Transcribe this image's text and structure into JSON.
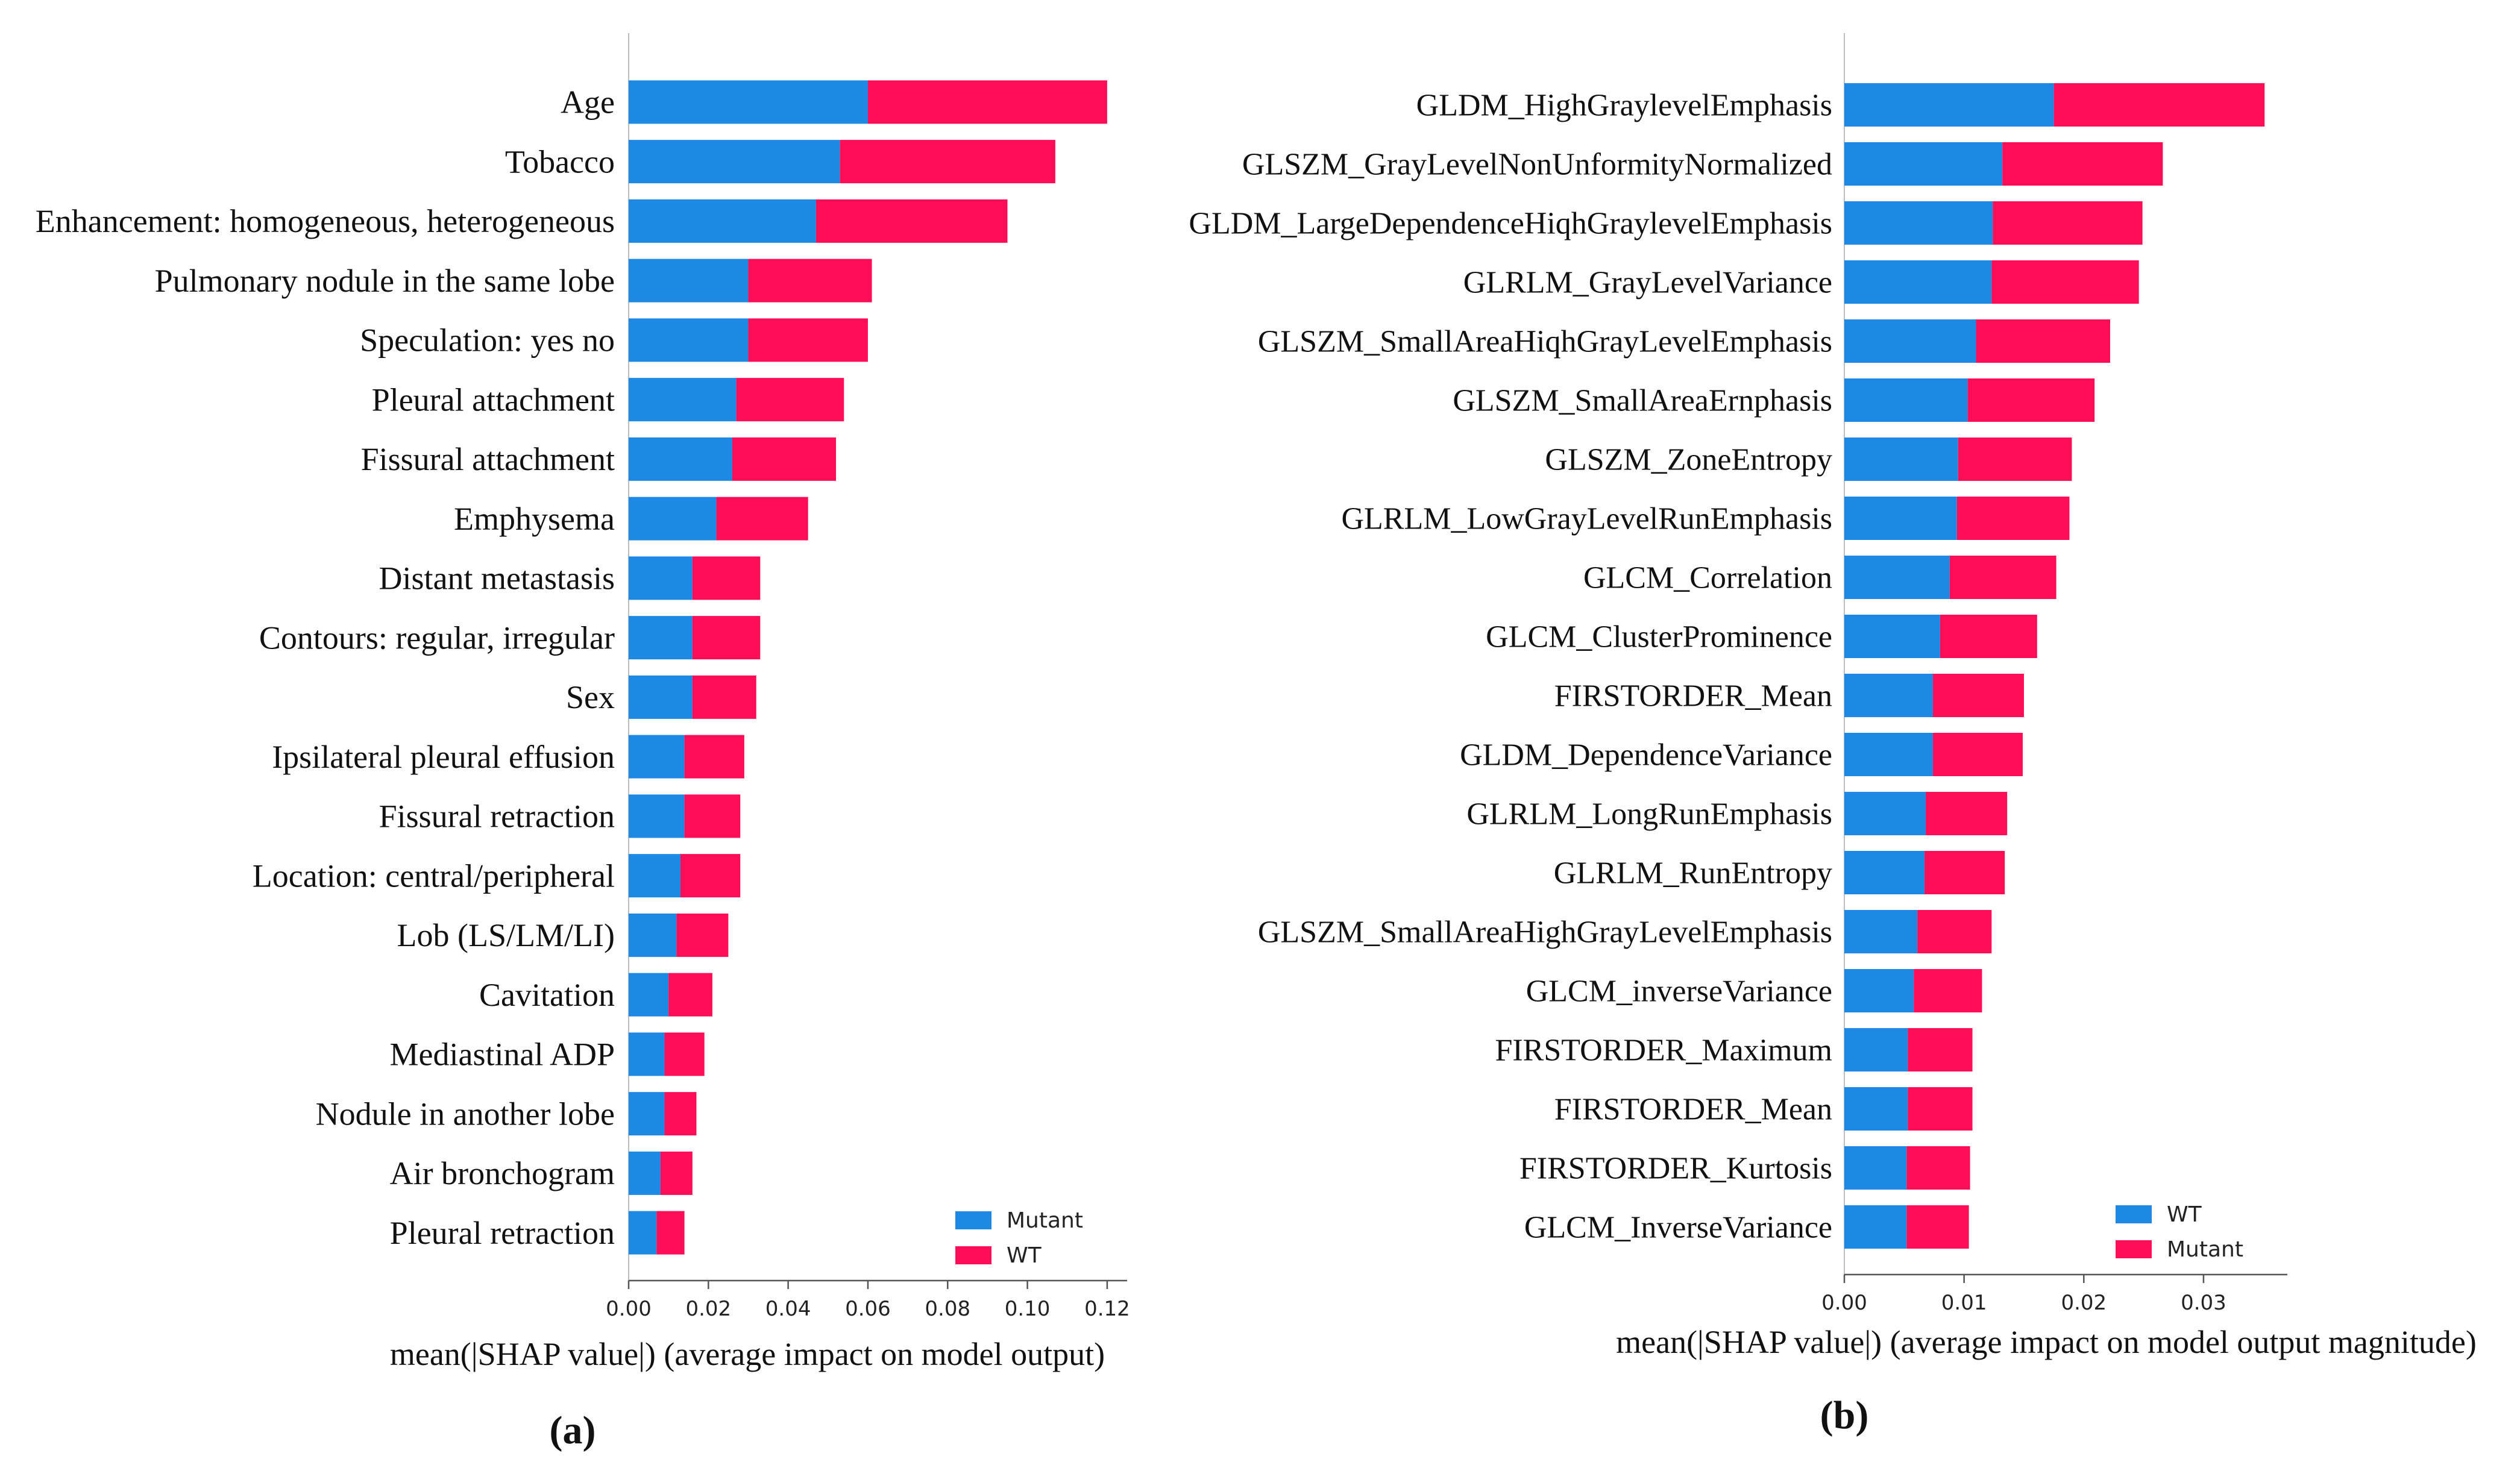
{
  "colors": {
    "blue": "#1E88E5",
    "red": "#FF0D57",
    "axis": "#555555"
  },
  "chart_data": [
    {
      "type": "bar",
      "stacked": true,
      "orientation": "horizontal",
      "panel_label": "(a)",
      "title": "",
      "xlabel": "mean(|SHAP value|) (average impact on model output)",
      "ylabel": "",
      "xlim": [
        0,
        0.125
      ],
      "xticks": [
        "0.00",
        "0.02",
        "0.04",
        "0.06",
        "0.08",
        "0.10",
        "0.12"
      ],
      "legend_position": "lower-right",
      "categories": [
        "Age",
        "Tobacco",
        "Enhancement: homogeneous, heterogeneous",
        "Pulmonary nodule in the same lobe",
        "Speculation: yes no",
        "Pleural attachment",
        "Fissural attachment",
        "Emphysema",
        "Distant metastasis",
        "Contours: regular, irregular",
        "Sex",
        "Ipsilateral pleural effusion",
        "Fissural retraction",
        "Location: central/peripheral",
        "Lob (LS/LM/LI)",
        "Cavitation",
        "Mediastinal ADP",
        "Nodule in another lobe",
        "Air bronchogram",
        "Pleural retraction"
      ],
      "series": [
        {
          "name": "Mutant",
          "color": "#1E88E5",
          "values": [
            0.06,
            0.053,
            0.047,
            0.03,
            0.03,
            0.027,
            0.026,
            0.022,
            0.016,
            0.016,
            0.016,
            0.014,
            0.014,
            0.013,
            0.012,
            0.01,
            0.009,
            0.009,
            0.008,
            0.007
          ]
        },
        {
          "name": "WT",
          "color": "#FF0D57",
          "values": [
            0.06,
            0.054,
            0.048,
            0.031,
            0.03,
            0.027,
            0.026,
            0.023,
            0.017,
            0.017,
            0.016,
            0.015,
            0.014,
            0.015,
            0.013,
            0.011,
            0.01,
            0.008,
            0.008,
            0.007
          ]
        }
      ]
    },
    {
      "type": "bar",
      "stacked": true,
      "orientation": "horizontal",
      "panel_label": "(b)",
      "title": "",
      "xlabel": "mean(|SHAP value|) (average impact on model output magnitude)",
      "ylabel": "",
      "xlim": [
        0,
        0.037
      ],
      "xticks": [
        "0.00",
        "0.01",
        "0.02",
        "0.03"
      ],
      "legend_position": "lower-right",
      "categories": [
        "GLDM_HighGraylevelEmphasis",
        "GLSZM_GrayLevelNonUnformityNormalized",
        "GLDM_LargeDependenceHiqhGraylevelEmphasis",
        "GLRLM_GrayLevelVariance",
        "GLSZM_SmallAreaHiqhGrayLevelEmphasis",
        "GLSZM_SmallAreaErnphasis",
        "GLSZM_ZoneEntropy",
        "GLRLM_LowGrayLevelRunEmphasis",
        "GLCM_Correlation",
        "GLCM_ClusterProminence",
        "FIRSTORDER_Mean",
        "GLDM_DependenceVariance",
        "GLRLM_LongRunEmphasis",
        "GLRLM_RunEntropy",
        "GLSZM_SmallAreaHighGrayLevelEmphasis",
        "GLCM_inverseVariance",
        "FIRSTORDER_Maximum",
        "FIRSTORDER_Mean",
        "FIRSTORDER_Kurtosis",
        "GLCM_InverseVariance"
      ],
      "series": [
        {
          "name": "WT",
          "color": "#1E88E5",
          "values": [
            0.0175,
            0.0132,
            0.0124,
            0.0123,
            0.011,
            0.0103,
            0.0095,
            0.0094,
            0.0088,
            0.008,
            0.0074,
            0.0074,
            0.0068,
            0.0067,
            0.0061,
            0.0058,
            0.0053,
            0.0053,
            0.0052,
            0.0052
          ]
        },
        {
          "name": "Mutant",
          "color": "#FF0D57",
          "values": [
            0.0176,
            0.0134,
            0.0125,
            0.0123,
            0.0112,
            0.0106,
            0.0095,
            0.0094,
            0.0089,
            0.0081,
            0.0076,
            0.0075,
            0.0068,
            0.0067,
            0.0062,
            0.0057,
            0.0054,
            0.0054,
            0.0053,
            0.0052
          ]
        }
      ]
    }
  ]
}
